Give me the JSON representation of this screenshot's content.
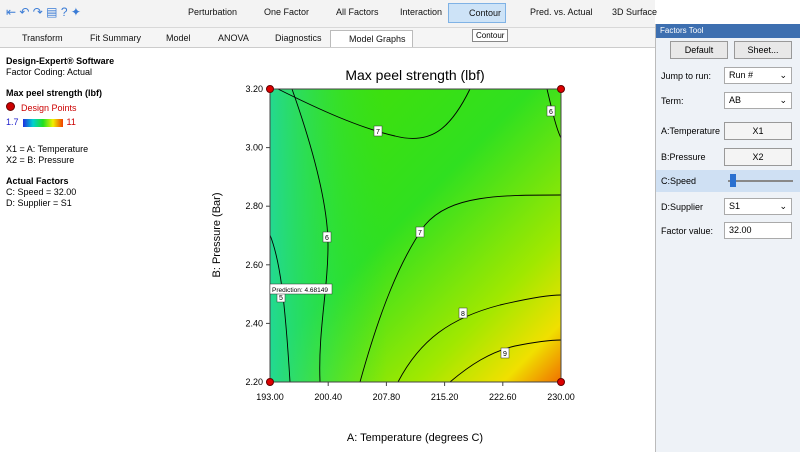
{
  "toolbar": {
    "buttons": [
      "Perturbation",
      "One Factor",
      "All Factors",
      "Interaction",
      "Contour",
      "Pred. vs. Actual",
      "3D Surface"
    ],
    "tooltip": "Contour"
  },
  "tabs": [
    "Transform",
    "Fit Summary",
    "Model",
    "ANOVA",
    "Diagnostics",
    "Model Graphs"
  ],
  "info": {
    "software": "Design-Expert® Software",
    "coding": "Factor Coding: Actual",
    "response": "Max peel strength (lbf)",
    "legend_points": "Design Points",
    "legend_min": 1.7,
    "legend_max": 11,
    "x1": "X1 = A: Temperature",
    "x2": "X2 = B: Pressure",
    "actual_title": "Actual Factors",
    "actual": [
      "C: Speed = 32.00",
      "D: Supplier = S1"
    ]
  },
  "plot": {
    "title": "Max peel strength (lbf)",
    "x_label": "A: Temperature (degrees C)",
    "y_label": "B: Pressure (Bar)",
    "xlim": [
      193,
      230
    ],
    "ylim": [
      2.2,
      3.2
    ],
    "xticks": [
      {
        "value": 193,
        "label": "193.00"
      },
      {
        "value": 200.4,
        "label": "200.40"
      },
      {
        "value": 207.8,
        "label": "207.80"
      },
      {
        "value": 215.2,
        "label": "215.20"
      },
      {
        "value": 222.6,
        "label": "222.60"
      },
      {
        "value": 230,
        "label": "230.00"
      }
    ],
    "yticks": [
      {
        "value": 2.2,
        "label": "2.20"
      },
      {
        "value": 2.4,
        "label": "2.40"
      },
      {
        "value": 2.6,
        "label": "2.60"
      },
      {
        "value": 2.8,
        "label": "2.80"
      },
      {
        "value": 3,
        "label": "3.00"
      },
      {
        "value": 3.2,
        "label": "3.20"
      }
    ],
    "design_points": {
      "x": [
        193,
        193,
        230,
        230
      ],
      "y": [
        2.2,
        3.2,
        3.2,
        2.2
      ]
    },
    "contour_labels": [
      7,
      6,
      6,
      7,
      5,
      8,
      9
    ],
    "prediction": "Prediction: 4.68149"
  },
  "factors_tool": {
    "title": "Factors Tool",
    "buttons": [
      "Default",
      "Sheet..."
    ],
    "rows": [
      {
        "label": "Jump to run:",
        "value": "Run #"
      },
      {
        "label": "Term:",
        "value": "AB"
      },
      {
        "label": "A:Temperature",
        "value": "X1"
      },
      {
        "label": "B:Pressure",
        "value": "X2"
      },
      {
        "label": "C:Speed"
      },
      {
        "label": "D:Supplier",
        "value": "S1"
      },
      {
        "label": "Factor value:",
        "value": "32.00"
      }
    ]
  }
}
